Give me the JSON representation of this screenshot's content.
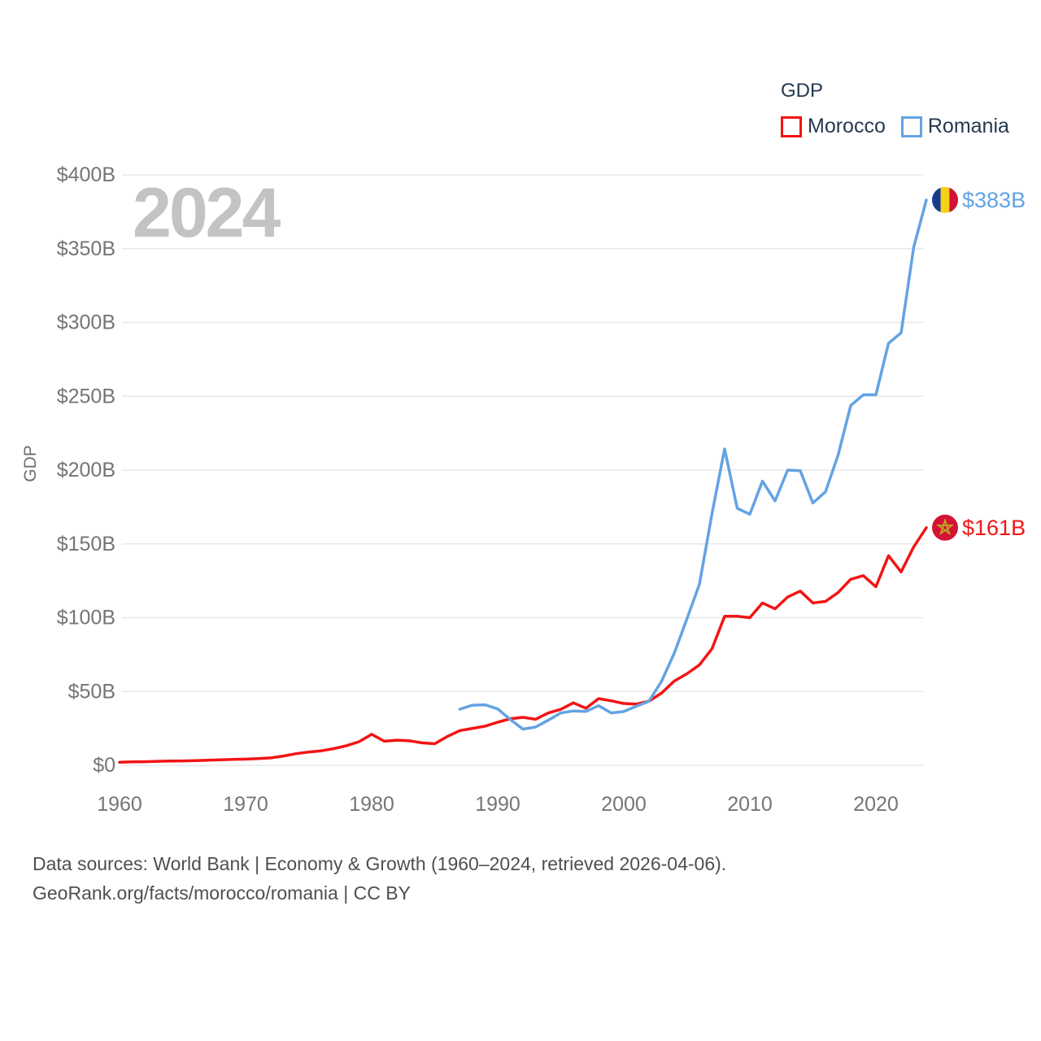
{
  "watermark": "2024",
  "legend": {
    "title": "GDP",
    "items": [
      {
        "label": "Morocco",
        "color": "#f21414"
      },
      {
        "label": "Romania",
        "color": "#63a3e3"
      }
    ]
  },
  "chart_data": {
    "type": "line",
    "title": "GDP",
    "ylabel": "GDP",
    "xlabel": "",
    "x_domain": [
      1960,
      2024
    ],
    "y_domain": [
      0,
      400
    ],
    "x_ticks": [
      1960,
      1970,
      1980,
      1990,
      2000,
      2010,
      2020
    ],
    "y_ticks": [
      0,
      50,
      100,
      150,
      200,
      250,
      300,
      350,
      400
    ],
    "y_tick_labels": [
      "$0",
      "$50B",
      "$100B",
      "$150B",
      "$200B",
      "$250B",
      "$300B",
      "$350B",
      "$400B"
    ],
    "grid": "horizontal",
    "legend_position": "top-right",
    "series": [
      {
        "name": "Morocco",
        "color": "#f21414",
        "flag": "morocco",
        "start_year": 1960,
        "end_label": "$161B",
        "values": [
          2.1,
          2.3,
          2.4,
          2.7,
          2.9,
          3.0,
          3.2,
          3.4,
          3.7,
          4.0,
          4.2,
          4.5,
          5.0,
          6.3,
          7.9,
          9.0,
          9.8,
          11.3,
          13.3,
          16.0,
          21.0,
          16.3,
          17.0,
          16.6,
          15.2,
          14.6,
          19.5,
          23.5,
          25.0,
          26.5,
          29.2,
          31.5,
          32.5,
          31.2,
          35.4,
          37.9,
          42.3,
          38.6,
          45.2,
          43.7,
          41.9,
          41.5,
          43.4,
          49.0,
          57.0,
          62.0,
          68.0,
          79.0,
          101.0,
          101.0,
          100.0,
          110.0,
          106.0,
          114.0,
          118.0,
          110.0,
          111.0,
          117.0,
          126.0,
          128.5,
          121.0,
          142.0,
          131.0,
          148.0,
          161.0
        ]
      },
      {
        "name": "Romania",
        "color": "#63a3e3",
        "flag": "romania",
        "start_year": 1987,
        "end_label": "$383B",
        "values": [
          38.0,
          40.7,
          41.0,
          38.2,
          31.0,
          24.5,
          25.9,
          30.5,
          35.5,
          36.8,
          36.5,
          40.4,
          35.5,
          36.4,
          40.0,
          43.4,
          57.0,
          75.8,
          99.0,
          122.7,
          170.6,
          214.3,
          174.1,
          170.1,
          192.5,
          179.1,
          200.0,
          199.6,
          177.7,
          185.3,
          210.1,
          243.7,
          251.0,
          251.0,
          285.9,
          293.0,
          351.0,
          383.0
        ]
      }
    ]
  },
  "flags": {
    "romania": {
      "blue": "#1a3a8c",
      "yellow": "#f7d117",
      "red": "#d01134"
    },
    "morocco": {
      "background": "#d51334",
      "star": "#bfab22"
    }
  },
  "colors": {
    "grid": "#e8e8e8",
    "tick_text": "#757575",
    "axis_label": "#6e6e6e"
  },
  "footer": {
    "line1": "Data sources: World Bank | Economy & Growth (1960–2024, retrieved 2026-04-06).",
    "line2": "GeoRank.org/facts/morocco/romania | CC BY"
  }
}
